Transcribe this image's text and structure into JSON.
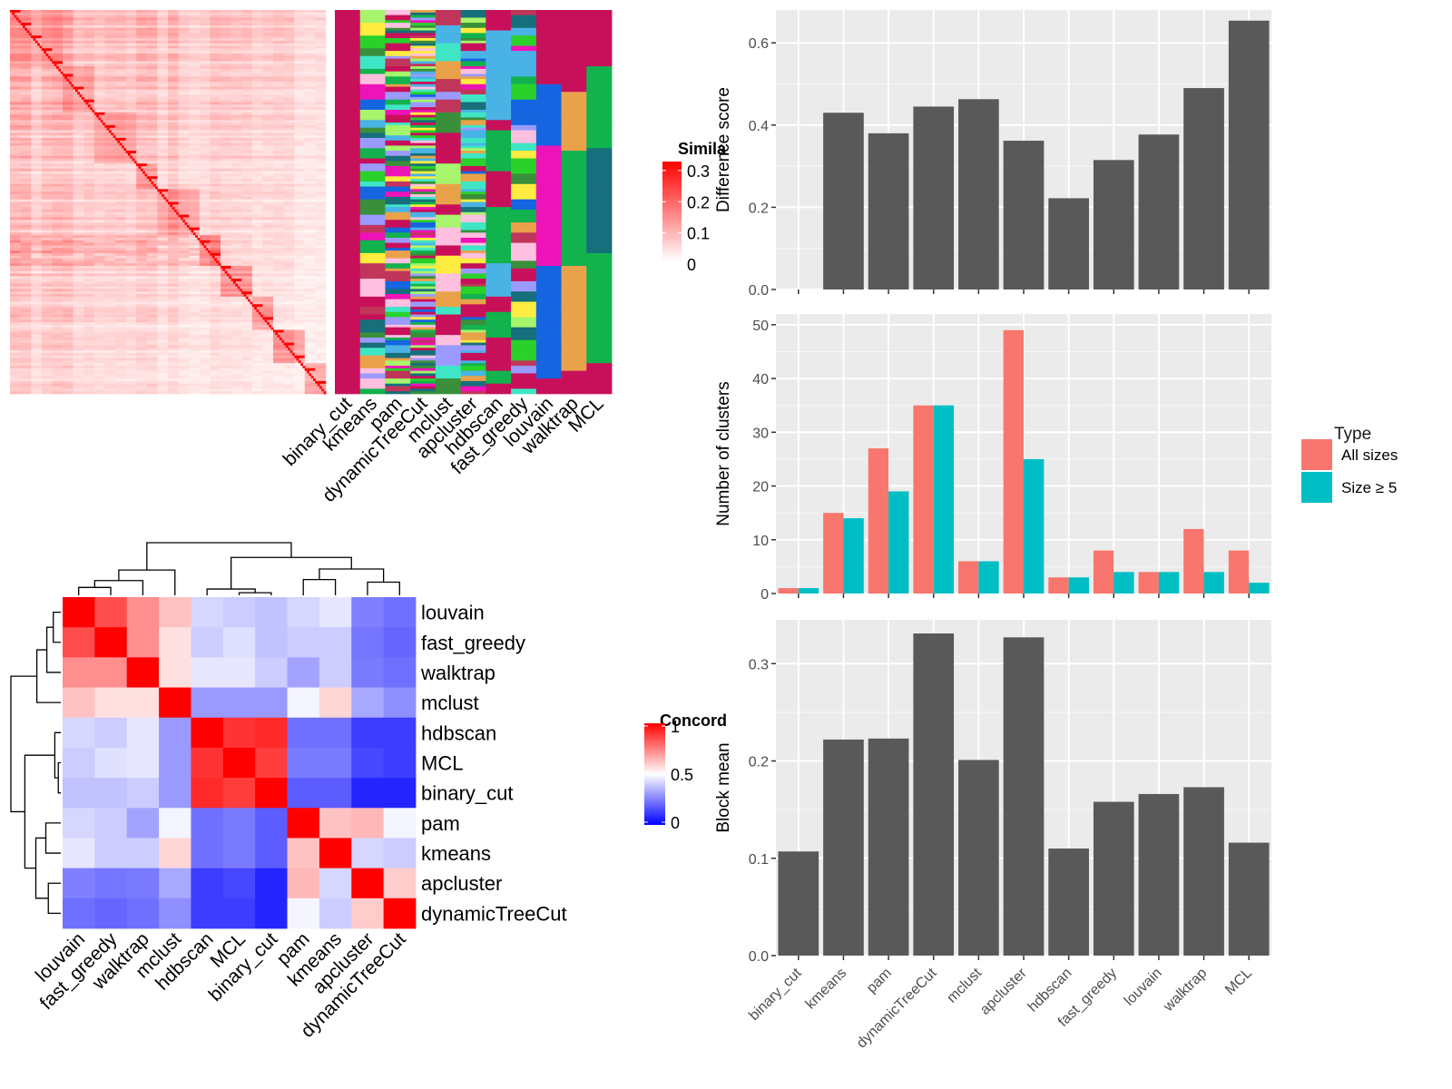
{
  "colors": {
    "panel_bg": "#ebebeb",
    "grid": "#ffffff",
    "bar_dark": "#595959",
    "all_sizes": "#f8766d",
    "size_ge5": "#00bfc4",
    "sim_high": "#ff0000",
    "sim_low": "#ffffff",
    "conc_high": "#ff0000",
    "conc_mid": "#ffffff",
    "conc_low": "#0000ff",
    "cat_bg": "#c8105a",
    "cat_palette": [
      "#c8105a",
      "#1565e0",
      "#eaa24a",
      "#12b24e",
      "#166f7a",
      "#ffec40",
      "#ee13b8",
      "#a6f56c",
      "#4ab3e6",
      "#3fe6c6",
      "#c0365a",
      "#3a8f3a",
      "#ffc0e0",
      "#9b9bff",
      "#2ad12a"
    ]
  },
  "chart_data": [
    {
      "id": "similarity-heatmap",
      "type": "heatmap",
      "legend_title": "Simila",
      "legend_ticks": [
        "0.3",
        "0.2",
        "0.1",
        "0"
      ],
      "legend_tick_values": [
        0.3,
        0.2,
        0.1,
        0
      ],
      "range": [
        0,
        0.32
      ],
      "n_cells": 150
    },
    {
      "id": "cluster-membership",
      "type": "heatmap",
      "columns": [
        "binary_cut",
        "kmeans",
        "pam",
        "dynamicTreeCut",
        "mclust",
        "apcluster",
        "hdbscan",
        "fast_greedy",
        "louvain",
        "walktrap",
        "MCL"
      ],
      "n_rows": 150
    },
    {
      "id": "concordance-heatmap",
      "type": "heatmap",
      "legend_title": "Concord",
      "legend_ticks": [
        "1",
        "0.5",
        "0"
      ],
      "legend_tick_values": [
        1,
        0.5,
        0
      ],
      "rows": [
        "louvain",
        "fast_greedy",
        "walktrap",
        "mclust",
        "hdbscan",
        "MCL",
        "binary_cut",
        "pam",
        "kmeans",
        "apcluster",
        "dynamicTreeCut"
      ],
      "columns": [
        "louvain",
        "fast_greedy",
        "walktrap",
        "mclust",
        "hdbscan",
        "MCL",
        "binary_cut",
        "pam",
        "kmeans",
        "apcluster",
        "dynamicTreeCut"
      ],
      "values": [
        [
          1.0,
          0.85,
          0.72,
          0.62,
          0.42,
          0.4,
          0.38,
          0.42,
          0.45,
          0.25,
          0.22
        ],
        [
          0.85,
          1.0,
          0.72,
          0.56,
          0.4,
          0.44,
          0.38,
          0.4,
          0.4,
          0.23,
          0.2
        ],
        [
          0.72,
          0.72,
          1.0,
          0.56,
          0.45,
          0.45,
          0.4,
          0.32,
          0.4,
          0.24,
          0.22
        ],
        [
          0.62,
          0.56,
          0.56,
          1.0,
          0.3,
          0.3,
          0.3,
          0.48,
          0.58,
          0.33,
          0.28
        ],
        [
          0.42,
          0.4,
          0.45,
          0.3,
          1.0,
          0.9,
          0.92,
          0.22,
          0.22,
          0.12,
          0.12
        ],
        [
          0.4,
          0.44,
          0.45,
          0.3,
          0.9,
          1.0,
          0.88,
          0.24,
          0.24,
          0.14,
          0.12
        ],
        [
          0.38,
          0.38,
          0.4,
          0.3,
          0.92,
          0.88,
          1.0,
          0.18,
          0.18,
          0.07,
          0.07
        ],
        [
          0.42,
          0.4,
          0.32,
          0.48,
          0.22,
          0.24,
          0.18,
          1.0,
          0.62,
          0.64,
          0.48
        ],
        [
          0.45,
          0.4,
          0.4,
          0.58,
          0.22,
          0.24,
          0.18,
          0.62,
          1.0,
          0.42,
          0.4
        ],
        [
          0.25,
          0.23,
          0.24,
          0.33,
          0.12,
          0.14,
          0.07,
          0.64,
          0.42,
          1.0,
          0.6
        ],
        [
          0.22,
          0.2,
          0.22,
          0.28,
          0.12,
          0.12,
          0.07,
          0.48,
          0.4,
          0.6,
          1.0
        ]
      ]
    },
    {
      "id": "difference-score",
      "type": "bar",
      "categories": [
        "binary_cut",
        "kmeans",
        "pam",
        "dynamicTreeCut",
        "mclust",
        "apcluster",
        "hdbscan",
        "fast_greedy",
        "louvain",
        "walktrap",
        "MCL"
      ],
      "values": [
        0.0,
        0.43,
        0.38,
        0.445,
        0.463,
        0.362,
        0.222,
        0.315,
        0.377,
        0.49,
        0.654
      ],
      "ylabel": "Difference score",
      "ylim": [
        0,
        0.68
      ],
      "yticks": [
        0.0,
        0.2,
        0.4,
        0.6
      ],
      "ytick_labels": [
        "0.0",
        "0.2",
        "0.4",
        "0.6"
      ]
    },
    {
      "id": "number-of-clusters",
      "type": "bar",
      "categories": [
        "binary_cut",
        "kmeans",
        "pam",
        "dynamicTreeCut",
        "mclust",
        "apcluster",
        "hdbscan",
        "fast_greedy",
        "louvain",
        "walktrap",
        "MCL"
      ],
      "series": [
        {
          "name": "All sizes",
          "values": [
            1,
            15,
            27,
            35,
            6,
            49,
            3,
            8,
            4,
            12,
            8
          ]
        },
        {
          "name": "Size ≥ 5",
          "values": [
            1,
            14,
            19,
            35,
            6,
            25,
            3,
            4,
            4,
            4,
            2
          ]
        }
      ],
      "ylabel": "Number of clusters",
      "ylim": [
        0,
        52
      ],
      "yticks": [
        0,
        10,
        20,
        30,
        40,
        50
      ],
      "ytick_labels": [
        "0",
        "10",
        "20",
        "30",
        "40",
        "50"
      ],
      "legend_title": "Type",
      "legend_position": "right"
    },
    {
      "id": "block-mean",
      "type": "bar",
      "categories": [
        "binary_cut",
        "kmeans",
        "pam",
        "dynamicTreeCut",
        "mclust",
        "apcluster",
        "hdbscan",
        "fast_greedy",
        "louvain",
        "walktrap",
        "MCL"
      ],
      "values": [
        0.107,
        0.222,
        0.223,
        0.331,
        0.201,
        0.327,
        0.11,
        0.158,
        0.166,
        0.173,
        0.116
      ],
      "ylabel": "Block mean",
      "ylim": [
        0,
        0.345
      ],
      "yticks": [
        0.0,
        0.1,
        0.2,
        0.3
      ],
      "ytick_labels": [
        "0.0",
        "0.1",
        "0.2",
        "0.3"
      ]
    }
  ]
}
